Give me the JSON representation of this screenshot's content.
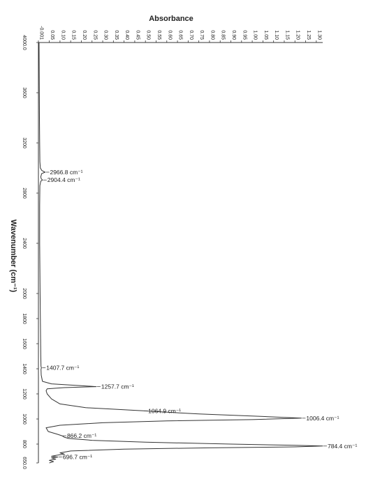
{
  "chart_data": {
    "type": "line",
    "xlabel": "Absorbance",
    "ylabel": "Wavenumber (cm⁻¹)",
    "xlim": [
      -0.001,
      1.33
    ],
    "ylim": [
      650.0,
      4000.0
    ],
    "x_ticks": [
      "-0.001",
      "0.05",
      "0.10",
      "0.15",
      "0.20",
      "0.25",
      "0.30",
      "0.35",
      "0.40",
      "0.45",
      "0.50",
      "0.55",
      "0.60",
      "0.65",
      "0.70",
      "0.75",
      "0.80",
      "0.85",
      "0.90",
      "0.95",
      "1.00",
      "1.05",
      "1.10",
      "1.15",
      "1.20",
      "1.25",
      "1.30"
    ],
    "y_ticks": [
      "4000.0",
      "3600",
      "3200",
      "2800",
      "2400",
      "2000",
      "1800",
      "1600",
      "1400",
      "1200",
      "1000",
      "800",
      "650.0"
    ],
    "grid": false,
    "series": [
      {
        "points": [
          [
            4000,
            0.002
          ],
          [
            3700,
            0.003
          ],
          [
            3400,
            0.004
          ],
          [
            3200,
            0.005
          ],
          [
            3050,
            0.006
          ],
          [
            3000,
            0.008
          ],
          [
            2980,
            0.015
          ],
          [
            2966.8,
            0.03
          ],
          [
            2955,
            0.014
          ],
          [
            2930,
            0.01
          ],
          [
            2915,
            0.012
          ],
          [
            2904.4,
            0.018
          ],
          [
            2895,
            0.01
          ],
          [
            2860,
            0.006
          ],
          [
            2700,
            0.005
          ],
          [
            2400,
            0.005
          ],
          [
            2200,
            0.006
          ],
          [
            2000,
            0.007
          ],
          [
            1800,
            0.008
          ],
          [
            1650,
            0.009
          ],
          [
            1500,
            0.01
          ],
          [
            1420,
            0.011
          ],
          [
            1407.7,
            0.013
          ],
          [
            1395,
            0.011
          ],
          [
            1350,
            0.012
          ],
          [
            1300,
            0.018
          ],
          [
            1280,
            0.06
          ],
          [
            1265,
            0.2
          ],
          [
            1257.7,
            0.27
          ],
          [
            1250,
            0.12
          ],
          [
            1240,
            0.04
          ],
          [
            1225,
            0.035
          ],
          [
            1200,
            0.04
          ],
          [
            1160,
            0.06
          ],
          [
            1120,
            0.1
          ],
          [
            1090,
            0.22
          ],
          [
            1064.9,
            0.49
          ],
          [
            1040,
            0.75
          ],
          [
            1020,
            1.05
          ],
          [
            1006.4,
            1.23
          ],
          [
            995,
            1.0
          ],
          [
            985,
            0.6
          ],
          [
            970,
            0.3
          ],
          [
            950,
            0.1
          ],
          [
            930,
            0.035
          ],
          [
            900,
            0.045
          ],
          [
            880,
            0.085
          ],
          [
            866.2,
            0.11
          ],
          [
            855,
            0.12
          ],
          [
            845,
            0.14
          ],
          [
            830,
            0.25
          ],
          [
            815,
            0.5
          ],
          [
            800,
            0.9
          ],
          [
            790,
            1.2
          ],
          [
            784.4,
            1.33
          ],
          [
            778,
            1.2
          ],
          [
            770,
            0.8
          ],
          [
            760,
            0.4
          ],
          [
            745,
            0.15
          ],
          [
            730,
            0.1
          ],
          [
            720,
            0.12
          ],
          [
            710,
            0.08
          ],
          [
            703,
            0.06
          ],
          [
            696.7,
            0.09
          ],
          [
            690,
            0.06
          ],
          [
            680,
            0.08
          ],
          [
            670,
            0.05
          ],
          [
            660,
            0.07
          ],
          [
            650,
            0.05
          ]
        ]
      }
    ],
    "annotations": [
      {
        "text": "2966.8 cm⁻¹",
        "x": 0.03,
        "y": 2966.8
      },
      {
        "text": "2904.4 cm⁻¹",
        "x": 0.018,
        "y": 2904.4
      },
      {
        "text": "1407.7 cm⁻¹",
        "x": 0.013,
        "y": 1407.7
      },
      {
        "text": "1257.7 cm⁻¹",
        "x": 0.27,
        "y": 1257.7
      },
      {
        "text": "1064.9 cm⁻¹",
        "x": 0.49,
        "y": 1064.9
      },
      {
        "text": "1006.4 cm⁻¹",
        "x": 1.23,
        "y": 1006.4
      },
      {
        "text": "866.2 cm⁻¹",
        "x": 0.11,
        "y": 866.2
      },
      {
        "text": "784.4 cm⁻¹",
        "x": 1.33,
        "y": 784.4
      },
      {
        "text": "696.7 cm⁻¹",
        "x": 0.09,
        "y": 696.7
      }
    ]
  }
}
